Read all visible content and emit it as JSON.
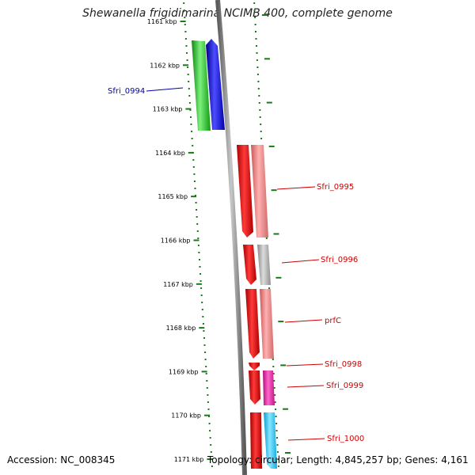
{
  "title": "Shewanella frigidimarina NCIMB 400, complete genome",
  "accession_text": "Accession: NC_008345",
  "topology_text": "Topology: circular; Length: 4,845,257 bp; Genes: 4,161",
  "kbp_labels": [
    "1161 kbp",
    "1162 kbp",
    "1163 kbp",
    "1164 kbp",
    "1165 kbp",
    "1166 kbp",
    "1167 kbp",
    "1168 kbp",
    "1169 kbp",
    "1170 kbp",
    "1171 kbp"
  ],
  "gene_labels": [
    "Sfri_0994",
    "Sfri_0995",
    "Sfri_0996",
    "prfC",
    "Sfri_0998",
    "Sfri_0999",
    "Sfri_1000"
  ],
  "colors": {
    "backbone": "#8a8a8a",
    "tick": "#1a7a1a",
    "forward_label": "#0000aa",
    "reverse_label": "#cc0000",
    "green": "#22cc22",
    "blue": "#0000ee",
    "red": "#ee0000",
    "salmon": "#f08080",
    "gray": "#b0b0b0",
    "magenta": "#ee22aa",
    "cyan": "#22ccff"
  }
}
